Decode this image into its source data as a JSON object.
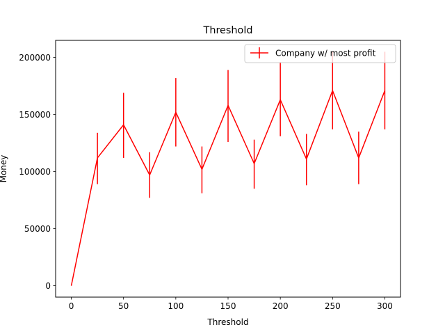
{
  "chart_data": {
    "type": "line",
    "title": "Threshold",
    "xlabel": "Threshold",
    "ylabel": "Money",
    "xlim": [
      -15,
      315
    ],
    "ylim": [
      -10000,
      215000
    ],
    "xticks": [
      0,
      50,
      100,
      150,
      200,
      250,
      300
    ],
    "yticks": [
      0,
      50000,
      100000,
      150000,
      200000
    ],
    "grid": false,
    "legend_position": "top-right",
    "series": [
      {
        "name": "Company w/ most profit",
        "color": "#ff0000",
        "x": [
          0,
          25,
          50,
          75,
          100,
          125,
          150,
          175,
          200,
          225,
          250,
          275,
          300
        ],
        "y": [
          0,
          112000,
          141000,
          97000,
          152000,
          102000,
          158000,
          107000,
          163000,
          111000,
          171000,
          112000,
          171000
        ],
        "err_low": [
          0,
          89000,
          112000,
          77000,
          122000,
          81000,
          126000,
          85000,
          131000,
          88000,
          137000,
          89000,
          137000
        ],
        "err_high": [
          0,
          134000,
          169000,
          117000,
          182000,
          122000,
          189000,
          128000,
          196000,
          133000,
          205000,
          135000,
          205000
        ]
      }
    ]
  }
}
